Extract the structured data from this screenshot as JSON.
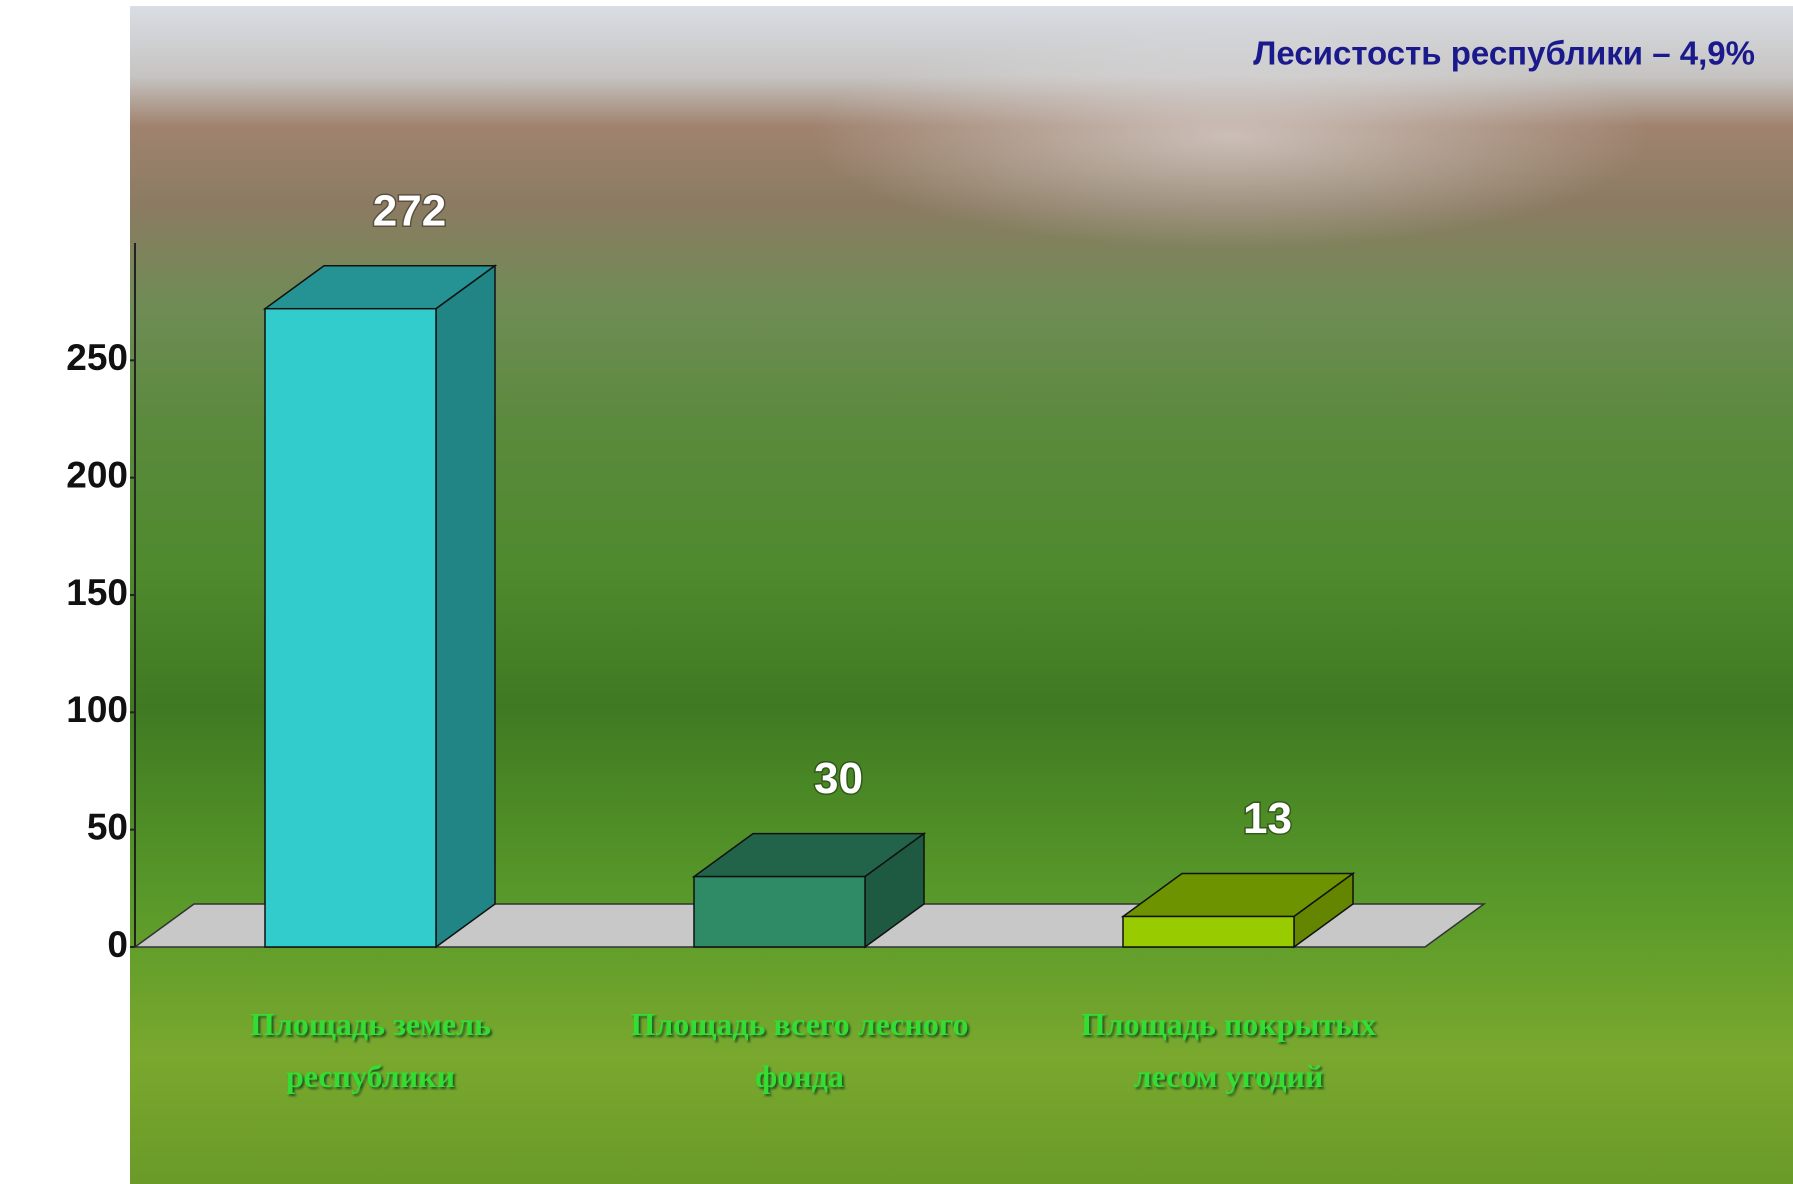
{
  "chart_data": {
    "type": "bar3d",
    "annotation": "Лесистость республики – 4,9%",
    "categories": [
      "Площадь земель республики",
      "Площадь всего лесного фонда",
      "Площадь покрытых лесом угодий"
    ],
    "values": [
      272,
      30,
      13
    ],
    "colors": [
      "#33cccc",
      "#2e8b66",
      "#99cc00"
    ],
    "ylim": [
      0,
      300
    ],
    "yticks": [
      0,
      50,
      100,
      150,
      200,
      250
    ]
  }
}
